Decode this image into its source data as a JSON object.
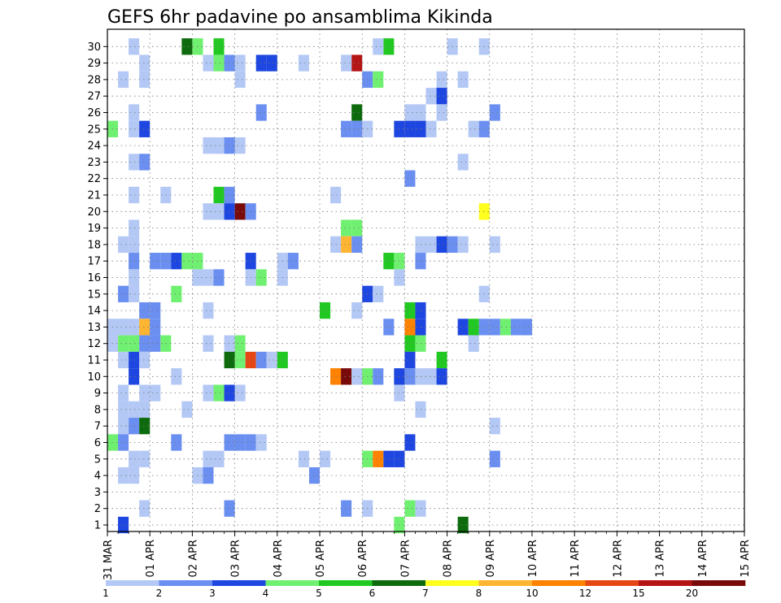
{
  "chart_data": {
    "type": "heatmap",
    "title": "GEFS 6hr padavine po ansamblima Kikinda",
    "xlabel": "",
    "ylabel": "",
    "x_tick_labels": [
      "31 MAR",
      "01 APR",
      "02 APR",
      "03 APR",
      "04 APR",
      "05 APR",
      "06 APR",
      "07 APR",
      "08 APR",
      "09 APR",
      "10 APR",
      "11 APR",
      "12 APR",
      "13 APR",
      "14 APR",
      "15 APR"
    ],
    "y_tick_labels": [
      "1",
      "2",
      "3",
      "4",
      "5",
      "6",
      "7",
      "8",
      "9",
      "10",
      "11",
      "12",
      "13",
      "14",
      "15",
      "16",
      "17",
      "18",
      "19",
      "20",
      "21",
      "22",
      "23",
      "24",
      "25",
      "26",
      "27",
      "28",
      "29",
      "30"
    ],
    "grid": true,
    "colorbar": {
      "labels": [
        "1",
        "2",
        "3",
        "4",
        "5",
        "6",
        "7",
        "8",
        "10",
        "12",
        "15",
        "20"
      ],
      "colors": [
        "#b4c8f5",
        "#6a8ff0",
        "#1e46e0",
        "#70f070",
        "#22c822",
        "#0d6b0d",
        "#ffff1e",
        "#ffb432",
        "#ff8200",
        "#e64614",
        "#b41414",
        "#780a0a"
      ]
    },
    "x_unit": "6-hour steps from 31 MAR 00 UTC",
    "cells": [
      [
        2,
        30,
        1
      ],
      [
        7,
        30,
        6
      ],
      [
        8,
        30,
        4
      ],
      [
        10,
        30,
        5
      ],
      [
        10,
        29,
        4
      ],
      [
        11,
        29,
        2
      ],
      [
        14,
        29,
        3
      ],
      [
        15,
        29,
        3
      ],
      [
        18,
        29,
        1
      ],
      [
        26,
        30,
        5
      ],
      [
        23,
        29,
        11
      ],
      [
        22,
        29,
        1
      ],
      [
        25,
        30,
        1
      ],
      [
        32,
        30,
        1
      ],
      [
        35,
        30,
        1
      ],
      [
        1,
        28,
        1
      ],
      [
        3,
        28,
        1
      ],
      [
        3,
        29,
        1
      ],
      [
        9,
        29,
        1
      ],
      [
        12,
        29,
        1
      ],
      [
        12,
        28,
        1
      ],
      [
        24,
        28,
        2
      ],
      [
        25,
        28,
        4
      ],
      [
        31,
        28,
        1
      ],
      [
        33,
        28,
        1
      ],
      [
        30,
        27,
        1
      ],
      [
        31,
        27,
        3
      ],
      [
        2,
        26,
        1
      ],
      [
        14,
        26,
        2
      ],
      [
        23,
        26,
        6
      ],
      [
        28,
        26,
        1
      ],
      [
        29,
        26,
        1
      ],
      [
        31,
        26,
        1
      ],
      [
        36,
        26,
        2
      ],
      [
        0,
        25,
        4
      ],
      [
        2,
        25,
        1
      ],
      [
        3,
        25,
        3
      ],
      [
        22,
        25,
        2
      ],
      [
        23,
        25,
        2
      ],
      [
        24,
        25,
        1
      ],
      [
        27,
        25,
        3
      ],
      [
        28,
        25,
        3
      ],
      [
        29,
        25,
        3
      ],
      [
        30,
        25,
        1
      ],
      [
        34,
        25,
        1
      ],
      [
        35,
        25,
        2
      ],
      [
        9,
        24,
        1
      ],
      [
        10,
        24,
        1
      ],
      [
        11,
        24,
        2
      ],
      [
        12,
        24,
        1
      ],
      [
        2,
        23,
        1
      ],
      [
        3,
        23,
        2
      ],
      [
        33,
        23,
        1
      ],
      [
        28,
        22,
        2
      ],
      [
        2,
        21,
        1
      ],
      [
        5,
        21,
        1
      ],
      [
        10,
        21,
        5
      ],
      [
        11,
        21,
        2
      ],
      [
        21,
        21,
        1
      ],
      [
        9,
        20,
        1
      ],
      [
        10,
        20,
        1
      ],
      [
        11,
        20,
        3
      ],
      [
        12,
        20,
        12
      ],
      [
        13,
        20,
        2
      ],
      [
        35,
        20,
        7
      ],
      [
        2,
        19,
        1
      ],
      [
        22,
        19,
        4
      ],
      [
        23,
        19,
        4
      ],
      [
        1,
        18,
        1
      ],
      [
        2,
        18,
        1
      ],
      [
        21,
        18,
        1
      ],
      [
        22,
        18,
        8
      ],
      [
        23,
        18,
        2
      ],
      [
        29,
        18,
        1
      ],
      [
        30,
        18,
        1
      ],
      [
        31,
        18,
        3
      ],
      [
        32,
        18,
        2
      ],
      [
        33,
        18,
        1
      ],
      [
        36,
        18,
        1
      ],
      [
        2,
        17,
        2
      ],
      [
        4,
        17,
        2
      ],
      [
        5,
        17,
        2
      ],
      [
        6,
        17,
        3
      ],
      [
        7,
        17,
        4
      ],
      [
        8,
        17,
        4
      ],
      [
        13,
        17,
        3
      ],
      [
        16,
        17,
        1
      ],
      [
        17,
        17,
        2
      ],
      [
        26,
        17,
        5
      ],
      [
        27,
        17,
        4
      ],
      [
        29,
        17,
        2
      ],
      [
        2,
        16,
        1
      ],
      [
        8,
        16,
        1
      ],
      [
        9,
        16,
        1
      ],
      [
        10,
        16,
        2
      ],
      [
        13,
        16,
        1
      ],
      [
        14,
        16,
        4
      ],
      [
        16,
        16,
        1
      ],
      [
        27,
        16,
        1
      ],
      [
        1,
        15,
        2
      ],
      [
        2,
        15,
        1
      ],
      [
        6,
        15,
        4
      ],
      [
        24,
        15,
        3
      ],
      [
        25,
        15,
        1
      ],
      [
        35,
        15,
        1
      ],
      [
        3,
        14,
        2
      ],
      [
        4,
        14,
        2
      ],
      [
        9,
        14,
        1
      ],
      [
        20,
        14,
        5
      ],
      [
        23,
        14,
        1
      ],
      [
        28,
        14,
        5
      ],
      [
        29,
        14,
        3
      ],
      [
        1,
        13,
        1
      ],
      [
        2,
        13,
        1
      ],
      [
        3,
        13,
        8
      ],
      [
        4,
        13,
        2
      ],
      [
        26,
        13,
        2
      ],
      [
        28,
        13,
        9
      ],
      [
        29,
        13,
        3
      ],
      [
        33,
        13,
        3
      ],
      [
        34,
        13,
        5
      ],
      [
        35,
        13,
        2
      ],
      [
        36,
        13,
        2
      ],
      [
        37,
        13,
        4
      ],
      [
        38,
        13,
        2
      ],
      [
        39,
        13,
        2
      ],
      [
        1,
        12,
        4
      ],
      [
        2,
        12,
        4
      ],
      [
        3,
        12,
        2
      ],
      [
        4,
        12,
        2
      ],
      [
        5,
        12,
        4
      ],
      [
        9,
        12,
        1
      ],
      [
        11,
        12,
        1
      ],
      [
        12,
        12,
        4
      ],
      [
        28,
        12,
        5
      ],
      [
        29,
        12,
        4
      ],
      [
        34,
        12,
        1
      ],
      [
        1,
        13,
        1
      ],
      [
        0,
        12,
        1
      ],
      [
        0,
        13,
        1
      ],
      [
        1,
        11,
        1
      ],
      [
        2,
        11,
        3
      ],
      [
        3,
        11,
        1
      ],
      [
        11,
        11,
        6
      ],
      [
        12,
        11,
        4
      ],
      [
        13,
        11,
        10
      ],
      [
        14,
        11,
        2
      ],
      [
        15,
        11,
        1
      ],
      [
        16,
        11,
        5
      ],
      [
        28,
        11,
        3
      ],
      [
        31,
        11,
        5
      ],
      [
        2,
        10,
        3
      ],
      [
        6,
        10,
        1
      ],
      [
        21,
        10,
        9
      ],
      [
        22,
        10,
        12
      ],
      [
        23,
        10,
        1
      ],
      [
        24,
        10,
        4
      ],
      [
        25,
        10,
        2
      ],
      [
        27,
        10,
        3
      ],
      [
        28,
        10,
        2
      ],
      [
        29,
        10,
        1
      ],
      [
        30,
        10,
        1
      ],
      [
        31,
        10,
        3
      ],
      [
        1,
        9,
        1
      ],
      [
        3,
        9,
        1
      ],
      [
        4,
        9,
        1
      ],
      [
        9,
        9,
        1
      ],
      [
        10,
        9,
        4
      ],
      [
        11,
        9,
        3
      ],
      [
        12,
        9,
        1
      ],
      [
        27,
        9,
        1
      ],
      [
        1,
        8,
        1
      ],
      [
        2,
        8,
        1
      ],
      [
        3,
        8,
        1
      ],
      [
        7,
        8,
        1
      ],
      [
        29,
        8,
        1
      ],
      [
        1,
        7,
        1
      ],
      [
        2,
        7,
        2
      ],
      [
        3,
        7,
        6
      ],
      [
        36,
        7,
        1
      ],
      [
        0,
        6,
        4
      ],
      [
        1,
        6,
        2
      ],
      [
        6,
        6,
        2
      ],
      [
        11,
        6,
        2
      ],
      [
        12,
        6,
        2
      ],
      [
        13,
        6,
        2
      ],
      [
        14,
        6,
        1
      ],
      [
        28,
        6,
        3
      ],
      [
        2,
        5,
        1
      ],
      [
        3,
        5,
        1
      ],
      [
        9,
        5,
        1
      ],
      [
        10,
        5,
        1
      ],
      [
        18,
        5,
        1
      ],
      [
        20,
        5,
        1
      ],
      [
        24,
        5,
        4
      ],
      [
        25,
        5,
        9
      ],
      [
        26,
        5,
        3
      ],
      [
        27,
        5,
        3
      ],
      [
        36,
        5,
        2
      ],
      [
        1,
        4,
        1
      ],
      [
        2,
        4,
        1
      ],
      [
        8,
        4,
        1
      ],
      [
        9,
        4,
        2
      ],
      [
        19,
        4,
        2
      ],
      [
        3,
        2,
        1
      ],
      [
        11,
        2,
        2
      ],
      [
        22,
        2,
        2
      ],
      [
        24,
        2,
        1
      ],
      [
        28,
        2,
        4
      ],
      [
        29,
        2,
        1
      ],
      [
        1,
        1,
        3
      ],
      [
        27,
        1,
        4
      ],
      [
        33,
        1,
        6
      ]
    ]
  }
}
